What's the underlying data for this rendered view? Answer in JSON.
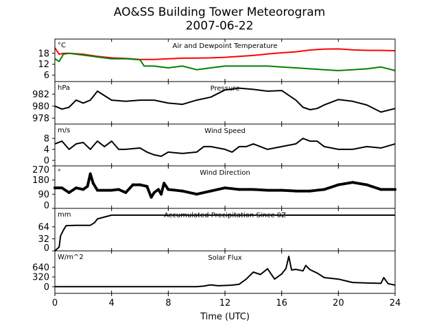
{
  "title": "AO&SS Building Tower Meteorogram",
  "subtitle": "2007-06-22",
  "xlabel": "Time (UTC)",
  "xticks": [
    0,
    4,
    8,
    12,
    16,
    20,
    24
  ],
  "xlim": [
    0,
    24
  ],
  "chart_data": [
    {
      "type": "line",
      "title": "Air and Dewpoint Temperature",
      "unit": "°C",
      "ylim": [
        2.5,
        25.8
      ],
      "yticks": [
        6,
        12,
        18
      ],
      "series": [
        {
          "name": "Air Temperature",
          "color": "#ff0000",
          "x": [
            0,
            0.3,
            0.6,
            1,
            2,
            3,
            4,
            5,
            6,
            7,
            8,
            9,
            10,
            11,
            12,
            13,
            14,
            15,
            16,
            17,
            18,
            19,
            20,
            21,
            22,
            23,
            24
          ],
          "y": [
            21,
            17.5,
            18,
            18,
            17.5,
            16.3,
            15.5,
            15.2,
            14.6,
            14.6,
            15,
            15.3,
            15.4,
            15.5,
            15.8,
            16.3,
            16.8,
            17.6,
            18.3,
            18.8,
            19.8,
            20.3,
            20.4,
            19.9,
            19.6,
            19.6,
            19.4
          ]
        },
        {
          "name": "Dewpoint",
          "color": "#008000",
          "x": [
            0,
            0.3,
            0.6,
            1,
            2,
            3,
            4,
            5,
            6,
            6.3,
            7,
            8,
            9,
            10,
            11,
            12,
            13,
            14,
            15,
            16,
            17,
            18,
            19,
            20,
            21,
            22,
            23,
            24
          ],
          "y": [
            15,
            13.5,
            17.5,
            18,
            17,
            16,
            15,
            15,
            14.5,
            11,
            11,
            10,
            11,
            9,
            10,
            11,
            11,
            11,
            11,
            10.5,
            10,
            9.5,
            9,
            8.5,
            9,
            9.5,
            10.5,
            8.5
          ]
        }
      ]
    },
    {
      "type": "line",
      "title": "Pressure",
      "unit": "hPa",
      "ylim": [
        977,
        984.1
      ],
      "yticks": [
        978,
        980,
        982
      ],
      "series": [
        {
          "name": "Pressure",
          "color": "#000000",
          "x": [
            0,
            0.5,
            1,
            1.5,
            2,
            2.5,
            3,
            4,
            5,
            6,
            7,
            8,
            9,
            10,
            11,
            12,
            13,
            14,
            15,
            16,
            17,
            17.5,
            18,
            18.5,
            19,
            20,
            21,
            22,
            23,
            24
          ],
          "y": [
            980,
            979.5,
            979.8,
            981,
            980.5,
            981,
            982.5,
            981,
            980.8,
            981,
            981,
            980.5,
            980.3,
            981,
            981.5,
            982.7,
            983,
            982.8,
            982.5,
            982.6,
            981,
            979.8,
            979.4,
            979.6,
            980.2,
            981.1,
            980.8,
            980.2,
            979,
            979.6
          ]
        }
      ]
    },
    {
      "type": "line",
      "title": "Wind Speed",
      "unit": "m/s",
      "ylim": [
        -2,
        13.2
      ],
      "yticks": [
        0,
        4,
        8
      ],
      "series": [
        {
          "name": "Wind Speed",
          "color": "#000000",
          "x": [
            0,
            0.5,
            1,
            1.5,
            2,
            2.5,
            3,
            3.5,
            4,
            4.5,
            5,
            6,
            6.5,
            7,
            7.5,
            8,
            9,
            10,
            10.5,
            11,
            12,
            12.5,
            13,
            13.5,
            14,
            14.5,
            15,
            16,
            17,
            17.5,
            18,
            18.5,
            19,
            20,
            21,
            22,
            23,
            24
          ],
          "y": [
            6,
            7,
            4,
            6,
            6.5,
            4,
            7,
            5,
            7,
            4,
            4,
            4.5,
            3,
            2,
            1.5,
            3,
            2.5,
            3,
            5,
            5,
            4,
            3,
            5,
            5,
            6,
            5,
            4,
            5,
            6,
            8,
            7,
            7,
            5,
            4,
            4,
            5,
            4.5,
            6
          ]
        }
      ]
    },
    {
      "type": "scatter",
      "title": "Wind Direction",
      "unit": "°",
      "ylim": [
        0,
        270
      ],
      "yticks": [
        0,
        90,
        180,
        270
      ],
      "series": [
        {
          "name": "Wind Direction",
          "color": "#000000",
          "x": [
            0,
            0.5,
            1,
            1.5,
            2,
            2.3,
            2.5,
            2.7,
            3,
            4,
            4.5,
            5,
            5.5,
            6,
            6.5,
            6.8,
            7,
            7.3,
            7.5,
            7.7,
            8,
            9,
            10,
            11,
            12,
            13,
            14,
            15,
            16,
            17,
            18,
            19,
            20,
            21,
            22,
            23,
            24
          ],
          "y": [
            130,
            130,
            100,
            130,
            120,
            140,
            220,
            160,
            115,
            115,
            120,
            100,
            150,
            150,
            140,
            70,
            100,
            120,
            90,
            160,
            120,
            110,
            90,
            110,
            130,
            120,
            120,
            115,
            115,
            110,
            110,
            120,
            150,
            165,
            150,
            120,
            120
          ]
        }
      ]
    },
    {
      "type": "line",
      "title": "Accumulated Precipitation Since 0Z",
      "unit": "mm",
      "ylim": [
        0,
        113
      ],
      "yticks": [
        0,
        32,
        64
      ],
      "series": [
        {
          "name": "Precipitation",
          "color": "#000000",
          "x": [
            0,
            0.3,
            0.4,
            0.6,
            0.8,
            1.5,
            2.5,
            2.8,
            3,
            3.5,
            4,
            24
          ],
          "y": [
            0,
            10,
            40,
            55,
            67,
            68,
            68,
            75,
            85,
            90,
            95,
            95
          ]
        }
      ]
    },
    {
      "type": "line",
      "title": "Solar Flux",
      "unit": "W/m^2",
      "ylim": [
        -220,
        1180
      ],
      "yticks": [
        0,
        320,
        640
      ],
      "series": [
        {
          "name": "Solar Flux",
          "color": "#000000",
          "x": [
            0,
            10,
            10.5,
            11,
            11.5,
            12,
            12.5,
            13,
            13.5,
            14,
            14.5,
            15,
            15.5,
            16,
            16.3,
            16.5,
            16.7,
            17,
            17.5,
            17.7,
            18,
            18.5,
            19,
            20,
            21,
            22,
            23,
            23.2,
            23.5,
            24
          ],
          "y": [
            0,
            0,
            20,
            60,
            30,
            40,
            50,
            80,
            250,
            480,
            400,
            590,
            250,
            420,
            600,
            1000,
            550,
            570,
            520,
            700,
            560,
            450,
            300,
            250,
            140,
            120,
            110,
            300,
            100,
            50
          ]
        }
      ]
    }
  ]
}
